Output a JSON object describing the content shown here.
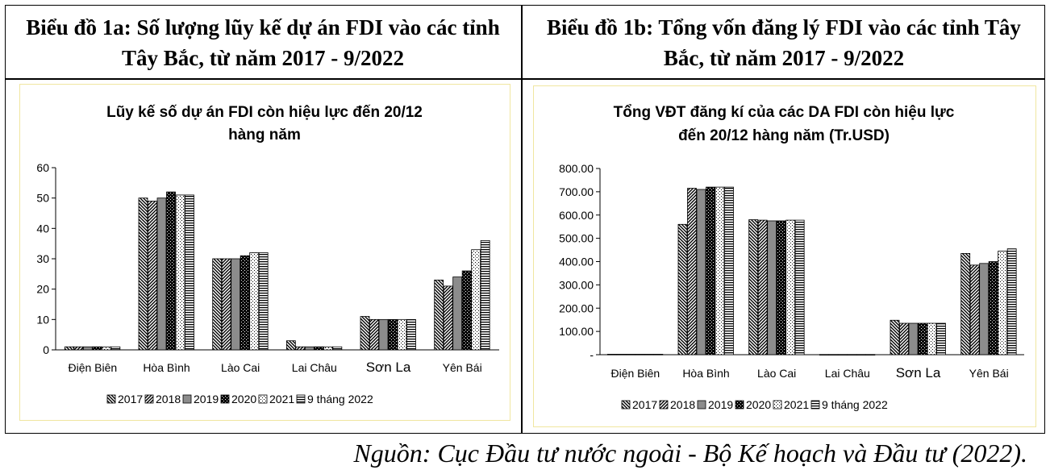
{
  "figure": {
    "left_header": "Biểu đồ 1a: Số lượng lũy kế dự án FDI vào các tỉnh Tây Bắc, từ năm 2017 - 9/2022",
    "right_header": "Biểu đồ 1b: Tổng vốn đăng lý FDI vào các tỉnh Tây Bắc, từ năm 2017 - 9/2022",
    "source": "Nguồn: Cục Đầu tư nước ngoài - Bộ Kế hoạch và Đầu tư (2022)."
  },
  "chart_data": [
    {
      "type": "bar",
      "title_lines": [
        "Lũy kế số dự án FDI còn hiệu lực đến 20/12",
        "hàng năm"
      ],
      "categories": [
        "Điện Biên",
        "Hòa Bình",
        "Lào Cai",
        "Lai Châu",
        "Sơn La",
        "Yên Bái"
      ],
      "series": [
        {
          "name": "2017",
          "values": [
            1,
            50,
            30,
            3,
            11,
            23
          ]
        },
        {
          "name": "2018",
          "values": [
            1,
            49,
            30,
            1,
            10,
            21
          ]
        },
        {
          "name": "2019",
          "values": [
            1,
            50,
            30,
            1,
            10,
            24
          ]
        },
        {
          "name": "2020",
          "values": [
            1,
            52,
            31,
            1,
            10,
            26
          ]
        },
        {
          "name": "2021",
          "values": [
            1,
            51,
            32,
            1,
            10,
            33
          ]
        },
        {
          "name": "9 tháng 2022",
          "values": [
            1,
            51,
            32,
            1,
            10,
            36
          ]
        }
      ],
      "ylim": [
        0,
        60
      ],
      "yticks": [
        "0",
        "10",
        "20",
        "30",
        "40",
        "50",
        "60"
      ],
      "legend_position": "bottom",
      "grid": false
    },
    {
      "type": "bar",
      "title_lines": [
        "Tổng VĐT đăng kí của các DA FDI còn hiệu lực",
        "đến 20/12 hàng năm (Tr.USD)"
      ],
      "categories": [
        "Điện Biên",
        "Hòa Bình",
        "Lào Cai",
        "Lai Châu",
        "Sơn La",
        "Yên Bái"
      ],
      "series": [
        {
          "name": "2017",
          "values": [
            2,
            560,
            580,
            1,
            148,
            435
          ]
        },
        {
          "name": "2018",
          "values": [
            2,
            715,
            578,
            1,
            135,
            385
          ]
        },
        {
          "name": "2019",
          "values": [
            2,
            710,
            575,
            1,
            135,
            392
          ]
        },
        {
          "name": "2020",
          "values": [
            2,
            720,
            575,
            1,
            135,
            400
          ]
        },
        {
          "name": "2021",
          "values": [
            2,
            720,
            578,
            1,
            135,
            445
          ]
        },
        {
          "name": "9 tháng 2022",
          "values": [
            2,
            720,
            578,
            1,
            135,
            455
          ]
        }
      ],
      "ylim": [
        0,
        800
      ],
      "yticks": [
        "-",
        "100.00",
        "200.00",
        "300.00",
        "400.00",
        "500.00",
        "600.00",
        "700.00",
        "800.00"
      ],
      "legend_position": "bottom",
      "grid": false
    }
  ]
}
